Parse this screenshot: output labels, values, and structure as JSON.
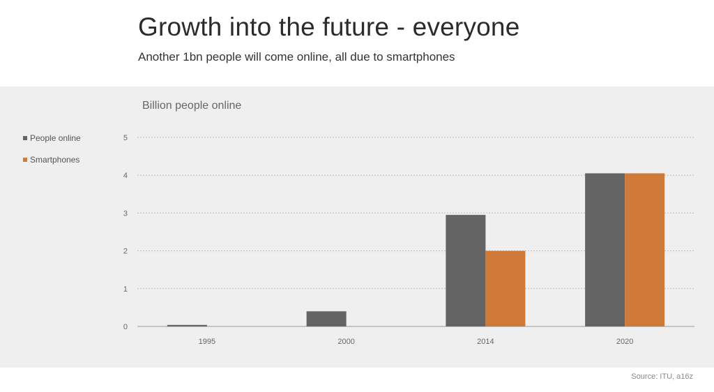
{
  "slide": {
    "title": "Growth into the future - everyone",
    "subtitle": "Another 1bn people will come online, all due to smartphones",
    "source": "Source: ITU, a16z"
  },
  "chart_data": {
    "type": "bar",
    "title": "Billion people online",
    "categories": [
      "1995",
      "2000",
      "2014",
      "2020"
    ],
    "series": [
      {
        "name": "People online",
        "values": [
          0.04,
          0.4,
          2.95,
          4.05
        ],
        "color": "#646464"
      },
      {
        "name": "Smartphones",
        "values": [
          0,
          0,
          2.0,
          4.05
        ],
        "color": "#d07a3a"
      }
    ],
    "yticks": [
      "0",
      "1",
      "2",
      "3",
      "4",
      "5"
    ],
    "ylim": [
      0,
      5
    ],
    "grid": true,
    "legend": "left"
  }
}
